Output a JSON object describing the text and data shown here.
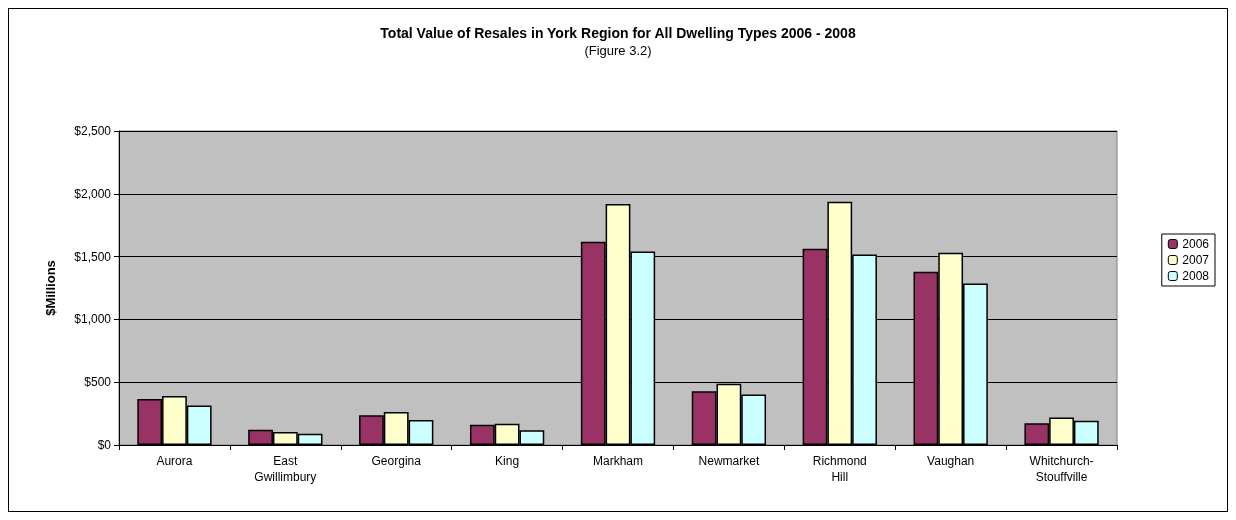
{
  "chart_data": {
    "type": "bar",
    "title": "Total Value of Resales in York Region for All Dwelling Types 2006 - 2008",
    "subtitle": "(Figure 3.2)",
    "ylabel": "$Millions",
    "categories": [
      "Aurora",
      "East\nGwillimbury",
      "Georgina",
      "King",
      "Markham",
      "Newmarket",
      "Richmond\nHill",
      "Vaughan",
      "Whitchurch-\nStouffville"
    ],
    "series": [
      {
        "name": "2006",
        "color": "#993366",
        "values": [
          367,
          121,
          236,
          162,
          1619,
          427,
          1562,
          1380,
          173
        ]
      },
      {
        "name": "2007",
        "color": "#ffffcc",
        "values": [
          390,
          103,
          262,
          169,
          1918,
          488,
          1936,
          1530,
          218
        ]
      },
      {
        "name": "2008",
        "color": "#ccffff",
        "values": [
          315,
          90,
          200,
          118,
          1540,
          402,
          1517,
          1286,
          193
        ]
      }
    ],
    "ylim": [
      0,
      2500
    ],
    "yticks": [
      {
        "value": 0,
        "label": "$0"
      },
      {
        "value": 500,
        "label": "$500"
      },
      {
        "value": 1000,
        "label": "$1,000"
      },
      {
        "value": 1500,
        "label": "$1,500"
      },
      {
        "value": 2000,
        "label": "$2,000"
      },
      {
        "value": 2500,
        "label": "$2,500"
      }
    ],
    "grid": "y",
    "legend": "right"
  }
}
